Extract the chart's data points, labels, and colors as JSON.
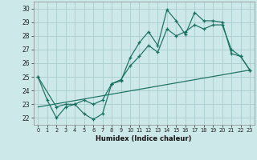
{
  "xlabel": "Humidex (Indice chaleur)",
  "bg_color": "#cce8e8",
  "grid_color": "#aacccc",
  "line_color": "#1a7060",
  "xlim": [
    -0.5,
    23.5
  ],
  "ylim": [
    21.5,
    30.5
  ],
  "xticks": [
    0,
    1,
    2,
    3,
    4,
    5,
    6,
    7,
    8,
    9,
    10,
    11,
    12,
    13,
    14,
    15,
    16,
    17,
    18,
    19,
    20,
    21,
    22,
    23
  ],
  "yticks": [
    22,
    23,
    24,
    25,
    26,
    27,
    28,
    29,
    30
  ],
  "line1_x": [
    0,
    1,
    2,
    3,
    4,
    5,
    6,
    7,
    8,
    9,
    10,
    11,
    12,
    13,
    14,
    15,
    16,
    17,
    18,
    19,
    20,
    21,
    22,
    23
  ],
  "line1_y": [
    25.0,
    23.3,
    22.0,
    22.8,
    23.0,
    22.3,
    21.9,
    22.3,
    24.5,
    24.7,
    26.4,
    27.5,
    28.3,
    27.3,
    29.9,
    29.1,
    28.1,
    29.7,
    29.1,
    29.1,
    29.0,
    26.7,
    26.5,
    25.5
  ],
  "line2_x": [
    0,
    2,
    3,
    4,
    5,
    6,
    7,
    8,
    9,
    10,
    11,
    12,
    13,
    14,
    15,
    16,
    17,
    18,
    19,
    20,
    21,
    22,
    23
  ],
  "line2_y": [
    25.0,
    22.8,
    23.0,
    23.0,
    23.3,
    23.0,
    23.3,
    24.5,
    24.8,
    25.8,
    26.5,
    27.3,
    26.8,
    28.5,
    28.0,
    28.3,
    28.8,
    28.5,
    28.8,
    28.8,
    27.0,
    26.5,
    25.5
  ],
  "line3_x": [
    0,
    23
  ],
  "line3_y": [
    22.8,
    25.5
  ]
}
